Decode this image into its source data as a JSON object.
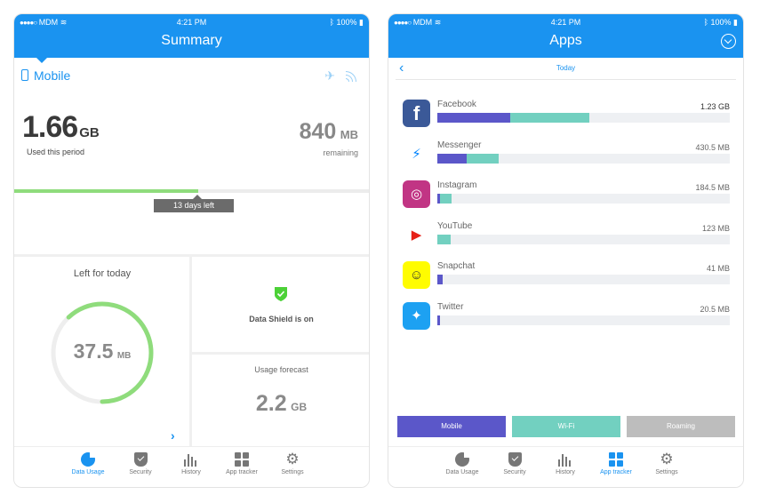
{
  "status": {
    "carrier": "MDM",
    "time": "4:21 PM",
    "battery": "100%"
  },
  "summary": {
    "title": "Summary",
    "mode_label": "Mobile",
    "used_value": "1.66",
    "used_unit": "GB",
    "used_label": "Used this period",
    "remaining_value": "840",
    "remaining_unit": "MB",
    "remaining_label": "remaining",
    "period_progress": 0.52,
    "days_left": "13 days left",
    "today_title": "Left for today",
    "today_value": "37.5",
    "today_unit": "MB",
    "today_fraction": 0.62,
    "shield_label": "Data Shield is on",
    "forecast_label": "Usage forecast",
    "forecast_value": "2.2",
    "forecast_unit": "GB"
  },
  "tabs": [
    {
      "label": "Data Usage",
      "icon": "pie-chart-icon"
    },
    {
      "label": "Security",
      "icon": "shield-icon"
    },
    {
      "label": "History",
      "icon": "history-bars-icon"
    },
    {
      "label": "App tracker",
      "icon": "grid-icon"
    },
    {
      "label": "Settings",
      "icon": "gear-icon"
    }
  ],
  "apps_screen": {
    "title": "Apps",
    "sub_title": "Today",
    "apps": [
      {
        "name": "Facebook",
        "size": "1.23 GB",
        "mobile": 0.25,
        "wifi": 0.27,
        "icon": "facebook-icon",
        "color": "#3b5998"
      },
      {
        "name": "Messenger",
        "size": "430.5 MB",
        "mobile": 0.1,
        "wifi": 0.11,
        "icon": "messenger-icon",
        "color": "#0084ff"
      },
      {
        "name": "Instagram",
        "size": "184.5 MB",
        "mobile": 0.01,
        "wifi": 0.04,
        "icon": "instagram-icon",
        "color": "#c13584"
      },
      {
        "name": "YouTube",
        "size": "123 MB",
        "mobile": 0.0,
        "wifi": 0.045,
        "icon": "youtube-icon",
        "color": "#e62117"
      },
      {
        "name": "Snapchat",
        "size": "41 MB",
        "mobile": 0.017,
        "wifi": 0.0,
        "icon": "snapchat-icon",
        "color": "#fffc00"
      },
      {
        "name": "Twitter",
        "size": "20.5 MB",
        "mobile": 0.01,
        "wifi": 0.0,
        "icon": "twitter-icon",
        "color": "#1da1f2"
      }
    ],
    "legend": [
      {
        "label": "Mobile",
        "color": "#5b57c9"
      },
      {
        "label": "Wi-Fi",
        "color": "#72d0c0"
      },
      {
        "label": "Roaming",
        "color": "#bdbdbd"
      }
    ]
  },
  "colors": {
    "accent": "#1a93f0",
    "progress": "#8fdc7c",
    "mobile": "#5b57c9",
    "wifi": "#72d0c0"
  }
}
